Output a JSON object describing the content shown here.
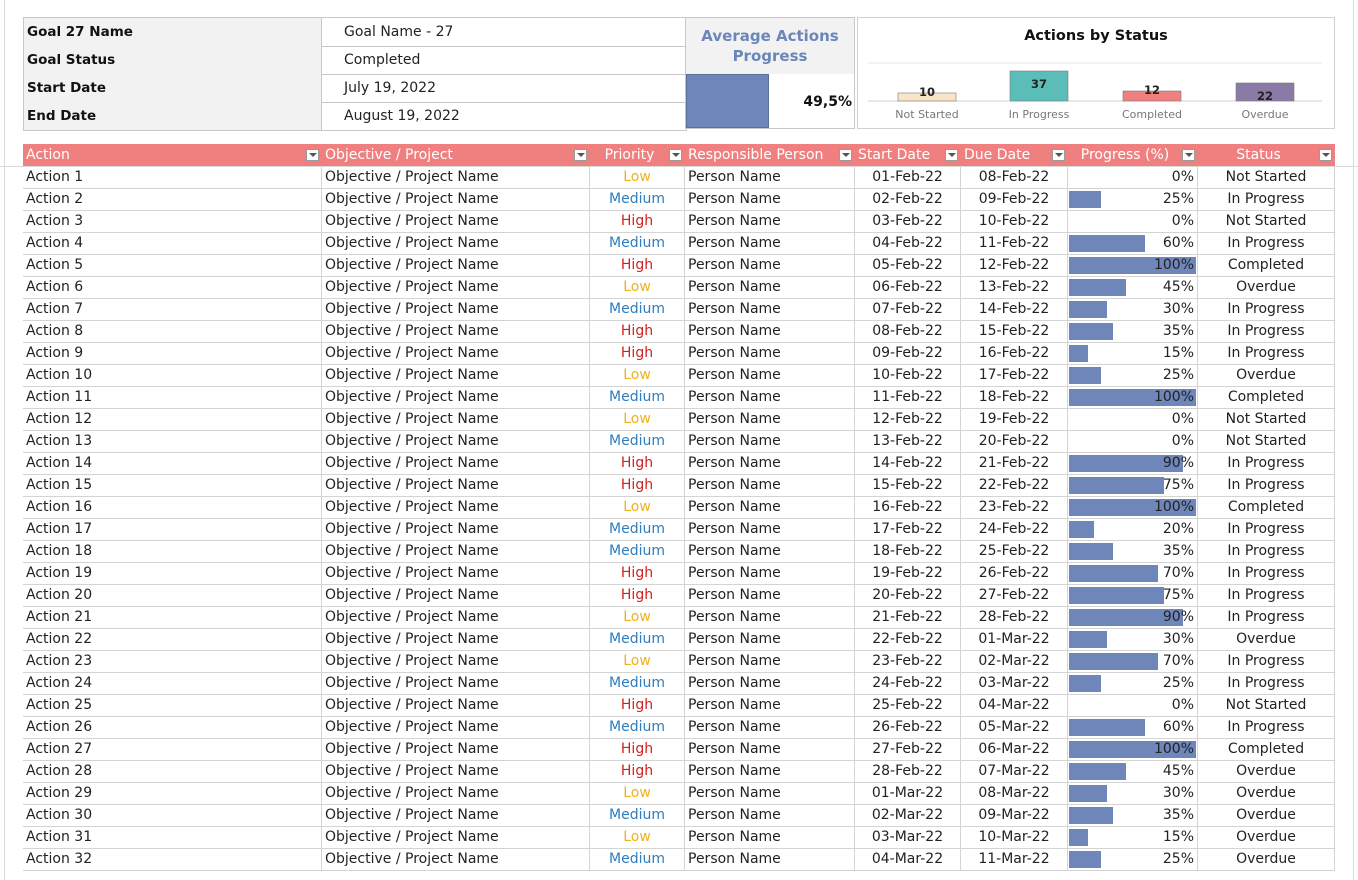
{
  "goal": {
    "name_label": "Goal 27 Name",
    "name_value": "Goal Name - 27",
    "status_label": "Goal Status",
    "status_value": "Completed",
    "start_label": "Start Date",
    "start_value": "July 19, 2022",
    "end_label": "End Date",
    "end_value": "August 19, 2022"
  },
  "average": {
    "title_line1": "Average Actions",
    "title_line2": "Progress",
    "value": "49,5%",
    "fraction": 0.495
  },
  "chart_data": {
    "type": "bar",
    "title": "Actions by Status",
    "categories": [
      "Not Started",
      "In Progress",
      "Completed",
      "Overdue"
    ],
    "values": [
      10,
      37,
      12,
      22
    ],
    "colors": [
      "#fbe5c8",
      "#5bbdb8",
      "#f08080",
      "#8a7aa6"
    ]
  },
  "columns": [
    "Action",
    "Objective / Project",
    "Priority",
    "Responsible Person",
    "Start Date",
    "Due Date",
    "Progress (%)",
    "Status"
  ],
  "priority_colors": {
    "Low": "#f0b21a",
    "Medium": "#2e7dbf",
    "High": "#d02020"
  },
  "rows": [
    {
      "action": "Action 1",
      "objective": "Objective / Project Name",
      "priority": "Low",
      "person": "Person Name",
      "start": "01-Feb-22",
      "due": "08-Feb-22",
      "progress": "0%",
      "status": "Not Started"
    },
    {
      "action": "Action 2",
      "objective": "Objective / Project Name",
      "priority": "Medium",
      "person": "Person Name",
      "start": "02-Feb-22",
      "due": "09-Feb-22",
      "progress": "25%",
      "status": "In Progress"
    },
    {
      "action": "Action 3",
      "objective": "Objective / Project Name",
      "priority": "High",
      "person": "Person Name",
      "start": "03-Feb-22",
      "due": "10-Feb-22",
      "progress": "0%",
      "status": "Not Started"
    },
    {
      "action": "Action 4",
      "objective": "Objective / Project Name",
      "priority": "Medium",
      "person": "Person Name",
      "start": "04-Feb-22",
      "due": "11-Feb-22",
      "progress": "60%",
      "status": "In Progress"
    },
    {
      "action": "Action 5",
      "objective": "Objective / Project Name",
      "priority": "High",
      "person": "Person Name",
      "start": "05-Feb-22",
      "due": "12-Feb-22",
      "progress": "100%",
      "status": "Completed"
    },
    {
      "action": "Action 6",
      "objective": "Objective / Project Name",
      "priority": "Low",
      "person": "Person Name",
      "start": "06-Feb-22",
      "due": "13-Feb-22",
      "progress": "45%",
      "status": "Overdue"
    },
    {
      "action": "Action 7",
      "objective": "Objective / Project Name",
      "priority": "Medium",
      "person": "Person Name",
      "start": "07-Feb-22",
      "due": "14-Feb-22",
      "progress": "30%",
      "status": "In Progress"
    },
    {
      "action": "Action 8",
      "objective": "Objective / Project Name",
      "priority": "High",
      "person": "Person Name",
      "start": "08-Feb-22",
      "due": "15-Feb-22",
      "progress": "35%",
      "status": "In Progress"
    },
    {
      "action": "Action 9",
      "objective": "Objective / Project Name",
      "priority": "High",
      "person": "Person Name",
      "start": "09-Feb-22",
      "due": "16-Feb-22",
      "progress": "15%",
      "status": "In Progress"
    },
    {
      "action": "Action 10",
      "objective": "Objective / Project Name",
      "priority": "Low",
      "person": "Person Name",
      "start": "10-Feb-22",
      "due": "17-Feb-22",
      "progress": "25%",
      "status": "Overdue"
    },
    {
      "action": "Action 11",
      "objective": "Objective / Project Name",
      "priority": "Medium",
      "person": "Person Name",
      "start": "11-Feb-22",
      "due": "18-Feb-22",
      "progress": "100%",
      "status": "Completed"
    },
    {
      "action": "Action 12",
      "objective": "Objective / Project Name",
      "priority": "Low",
      "person": "Person Name",
      "start": "12-Feb-22",
      "due": "19-Feb-22",
      "progress": "0%",
      "status": "Not Started"
    },
    {
      "action": "Action 13",
      "objective": "Objective / Project Name",
      "priority": "Medium",
      "person": "Person Name",
      "start": "13-Feb-22",
      "due": "20-Feb-22",
      "progress": "0%",
      "status": "Not Started"
    },
    {
      "action": "Action 14",
      "objective": "Objective / Project Name",
      "priority": "High",
      "person": "Person Name",
      "start": "14-Feb-22",
      "due": "21-Feb-22",
      "progress": "90%",
      "status": "In Progress"
    },
    {
      "action": "Action 15",
      "objective": "Objective / Project Name",
      "priority": "High",
      "person": "Person Name",
      "start": "15-Feb-22",
      "due": "22-Feb-22",
      "progress": "75%",
      "status": "In Progress"
    },
    {
      "action": "Action 16",
      "objective": "Objective / Project Name",
      "priority": "Low",
      "person": "Person Name",
      "start": "16-Feb-22",
      "due": "23-Feb-22",
      "progress": "100%",
      "status": "Completed"
    },
    {
      "action": "Action 17",
      "objective": "Objective / Project Name",
      "priority": "Medium",
      "person": "Person Name",
      "start": "17-Feb-22",
      "due": "24-Feb-22",
      "progress": "20%",
      "status": "In Progress"
    },
    {
      "action": "Action 18",
      "objective": "Objective / Project Name",
      "priority": "Medium",
      "person": "Person Name",
      "start": "18-Feb-22",
      "due": "25-Feb-22",
      "progress": "35%",
      "status": "In Progress"
    },
    {
      "action": "Action 19",
      "objective": "Objective / Project Name",
      "priority": "High",
      "person": "Person Name",
      "start": "19-Feb-22",
      "due": "26-Feb-22",
      "progress": "70%",
      "status": "In Progress"
    },
    {
      "action": "Action 20",
      "objective": "Objective / Project Name",
      "priority": "High",
      "person": "Person Name",
      "start": "20-Feb-22",
      "due": "27-Feb-22",
      "progress": "75%",
      "status": "In Progress"
    },
    {
      "action": "Action 21",
      "objective": "Objective / Project Name",
      "priority": "Low",
      "person": "Person Name",
      "start": "21-Feb-22",
      "due": "28-Feb-22",
      "progress": "90%",
      "status": "In Progress"
    },
    {
      "action": "Action 22",
      "objective": "Objective / Project Name",
      "priority": "Medium",
      "person": "Person Name",
      "start": "22-Feb-22",
      "due": "01-Mar-22",
      "progress": "30%",
      "status": "Overdue"
    },
    {
      "action": "Action 23",
      "objective": "Objective / Project Name",
      "priority": "Low",
      "person": "Person Name",
      "start": "23-Feb-22",
      "due": "02-Mar-22",
      "progress": "70%",
      "status": "In Progress"
    },
    {
      "action": "Action 24",
      "objective": "Objective / Project Name",
      "priority": "Medium",
      "person": "Person Name",
      "start": "24-Feb-22",
      "due": "03-Mar-22",
      "progress": "25%",
      "status": "In Progress"
    },
    {
      "action": "Action 25",
      "objective": "Objective / Project Name",
      "priority": "High",
      "person": "Person Name",
      "start": "25-Feb-22",
      "due": "04-Mar-22",
      "progress": "0%",
      "status": "Not Started"
    },
    {
      "action": "Action 26",
      "objective": "Objective / Project Name",
      "priority": "Medium",
      "person": "Person Name",
      "start": "26-Feb-22",
      "due": "05-Mar-22",
      "progress": "60%",
      "status": "In Progress"
    },
    {
      "action": "Action 27",
      "objective": "Objective / Project Name",
      "priority": "High",
      "person": "Person Name",
      "start": "27-Feb-22",
      "due": "06-Mar-22",
      "progress": "100%",
      "status": "Completed"
    },
    {
      "action": "Action 28",
      "objective": "Objective / Project Name",
      "priority": "High",
      "person": "Person Name",
      "start": "28-Feb-22",
      "due": "07-Mar-22",
      "progress": "45%",
      "status": "Overdue"
    },
    {
      "action": "Action 29",
      "objective": "Objective / Project Name",
      "priority": "Low",
      "person": "Person Name",
      "start": "01-Mar-22",
      "due": "08-Mar-22",
      "progress": "30%",
      "status": "Overdue"
    },
    {
      "action": "Action 30",
      "objective": "Objective / Project Name",
      "priority": "Medium",
      "person": "Person Name",
      "start": "02-Mar-22",
      "due": "09-Mar-22",
      "progress": "35%",
      "status": "Overdue"
    },
    {
      "action": "Action 31",
      "objective": "Objective / Project Name",
      "priority": "Low",
      "person": "Person Name",
      "start": "03-Mar-22",
      "due": "10-Mar-22",
      "progress": "15%",
      "status": "Overdue"
    },
    {
      "action": "Action 32",
      "objective": "Objective / Project Name",
      "priority": "Medium",
      "person": "Person Name",
      "start": "04-Mar-22",
      "due": "11-Mar-22",
      "progress": "25%",
      "status": "Overdue"
    }
  ]
}
